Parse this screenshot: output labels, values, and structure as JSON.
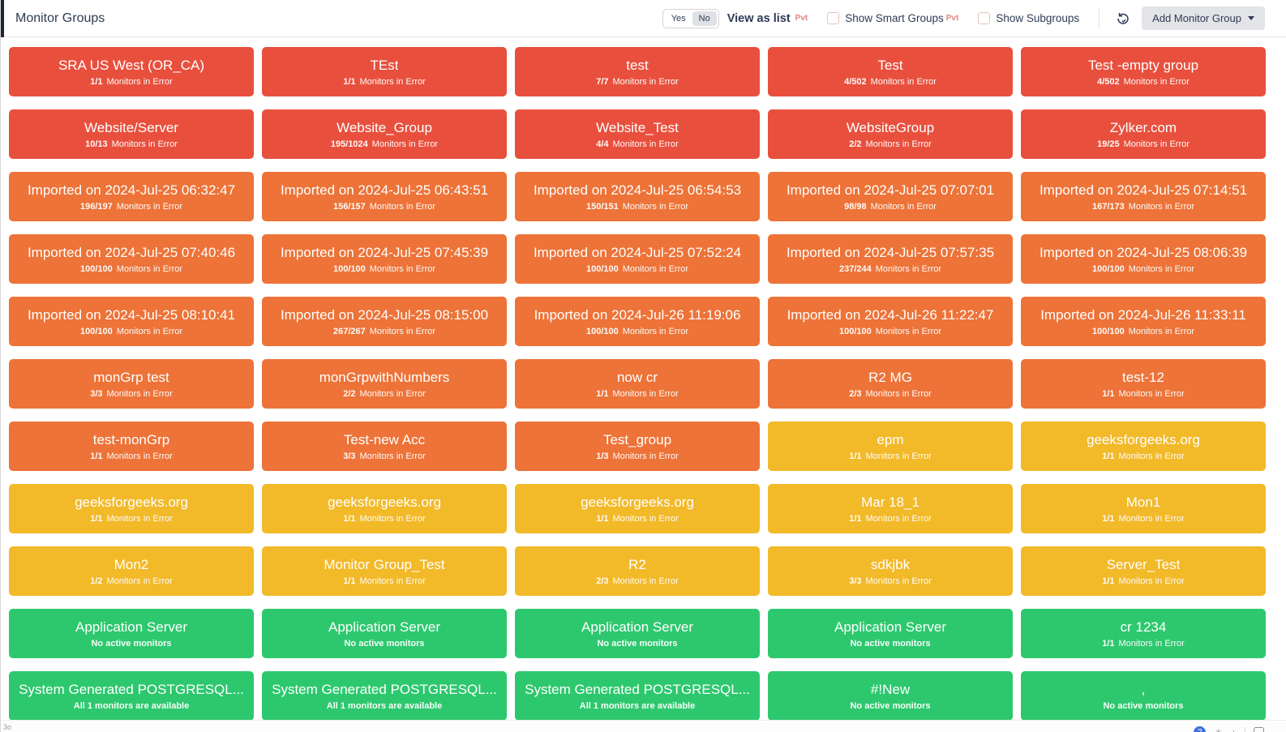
{
  "header": {
    "title": "Monitor Groups",
    "toggle": {
      "yes_label": "Yes",
      "no_label": "No",
      "selected": "No"
    },
    "view_as_list_label": "View as list",
    "view_as_list_pvt": "Pvt",
    "show_smart_groups_label": "Show Smart Groups",
    "show_smart_groups_pvt": "Pvt",
    "show_subgroups_label": "Show Subgroups",
    "refresh_icon": "refresh-icon",
    "add_button_label": "Add Monitor Group"
  },
  "colors": {
    "red": "#e8503d",
    "orange": "#ed7338",
    "yellow": "#f2b929",
    "green": "#2dc86e"
  },
  "status_texts": {
    "in_error": "Monitors in Error",
    "no_active": "No active monitors",
    "all_available": "All 1 monitors are available"
  },
  "tiles": [
    {
      "title": "SRA US West (OR_CA)",
      "count": "1/1",
      "status": "Monitors in Error",
      "color": "red"
    },
    {
      "title": "TEst",
      "count": "1/1",
      "status": "Monitors in Error",
      "color": "red"
    },
    {
      "title": "test",
      "count": "7/7",
      "status": "Monitors in Error",
      "color": "red"
    },
    {
      "title": "Test",
      "count": "4/502",
      "status": "Monitors in Error",
      "color": "red"
    },
    {
      "title": "Test -empty group",
      "count": "4/502",
      "status": "Monitors in Error",
      "color": "red"
    },
    {
      "title": "Website/Server",
      "count": "10/13",
      "status": "Monitors in Error",
      "color": "red"
    },
    {
      "title": "Website_Group",
      "count": "195/1024",
      "status": "Monitors in Error",
      "color": "red"
    },
    {
      "title": "Website_Test",
      "count": "4/4",
      "status": "Monitors in Error",
      "color": "red"
    },
    {
      "title": "WebsiteGroup",
      "count": "2/2",
      "status": "Monitors in Error",
      "color": "red"
    },
    {
      "title": "Zylker.com",
      "count": "19/25",
      "status": "Monitors in Error",
      "color": "red"
    },
    {
      "title": "Imported on 2024-Jul-25 06:32:47",
      "count": "196/197",
      "status": "Monitors in Error",
      "color": "orange"
    },
    {
      "title": "Imported on 2024-Jul-25 06:43:51",
      "count": "156/157",
      "status": "Monitors in Error",
      "color": "orange"
    },
    {
      "title": "Imported on 2024-Jul-25 06:54:53",
      "count": "150/151",
      "status": "Monitors in Error",
      "color": "orange"
    },
    {
      "title": "Imported on 2024-Jul-25 07:07:01",
      "count": "98/98",
      "status": "Monitors in Error",
      "color": "orange"
    },
    {
      "title": "Imported on 2024-Jul-25 07:14:51",
      "count": "167/173",
      "status": "Monitors in Error",
      "color": "orange"
    },
    {
      "title": "Imported on 2024-Jul-25 07:40:46",
      "count": "100/100",
      "status": "Monitors in Error",
      "color": "orange"
    },
    {
      "title": "Imported on 2024-Jul-25 07:45:39",
      "count": "100/100",
      "status": "Monitors in Error",
      "color": "orange"
    },
    {
      "title": "Imported on 2024-Jul-25 07:52:24",
      "count": "100/100",
      "status": "Monitors in Error",
      "color": "orange"
    },
    {
      "title": "Imported on 2024-Jul-25 07:57:35",
      "count": "237/244",
      "status": "Monitors in Error",
      "color": "orange"
    },
    {
      "title": "Imported on 2024-Jul-25 08:06:39",
      "count": "100/100",
      "status": "Monitors in Error",
      "color": "orange"
    },
    {
      "title": "Imported on 2024-Jul-25 08:10:41",
      "count": "100/100",
      "status": "Monitors in Error",
      "color": "orange"
    },
    {
      "title": "Imported on 2024-Jul-25 08:15:00",
      "count": "267/267",
      "status": "Monitors in Error",
      "color": "orange"
    },
    {
      "title": "Imported on 2024-Jul-26 11:19:06",
      "count": "100/100",
      "status": "Monitors in Error",
      "color": "orange"
    },
    {
      "title": "Imported on 2024-Jul-26 11:22:47",
      "count": "100/100",
      "status": "Monitors in Error",
      "color": "orange"
    },
    {
      "title": "Imported on 2024-Jul-26 11:33:11",
      "count": "100/100",
      "status": "Monitors in Error",
      "color": "orange"
    },
    {
      "title": "monGrp test",
      "count": "3/3",
      "status": "Monitors in Error",
      "color": "orange"
    },
    {
      "title": "monGrpwithNumbers",
      "count": "2/2",
      "status": "Monitors in Error",
      "color": "orange"
    },
    {
      "title": "now cr",
      "count": "1/1",
      "status": "Monitors in Error",
      "color": "orange"
    },
    {
      "title": "R2 MG",
      "count": "2/3",
      "status": "Monitors in Error",
      "color": "orange"
    },
    {
      "title": "test-12",
      "count": "1/1",
      "status": "Monitors in Error",
      "color": "orange"
    },
    {
      "title": "test-monGrp",
      "count": "1/1",
      "status": "Monitors in Error",
      "color": "orange"
    },
    {
      "title": "Test-new Acc",
      "count": "3/3",
      "status": "Monitors in Error",
      "color": "orange"
    },
    {
      "title": "Test_group",
      "count": "1/3",
      "status": "Monitors in Error",
      "color": "orange"
    },
    {
      "title": "epm",
      "count": "1/1",
      "status": "Monitors in Error",
      "color": "yellow"
    },
    {
      "title": "geeksforgeeks.org",
      "count": "1/1",
      "status": "Monitors in Error",
      "color": "yellow"
    },
    {
      "title": "geeksforgeeks.org",
      "count": "1/1",
      "status": "Monitors in Error",
      "color": "yellow"
    },
    {
      "title": "geeksforgeeks.org",
      "count": "1/1",
      "status": "Monitors in Error",
      "color": "yellow"
    },
    {
      "title": "geeksforgeeks.org",
      "count": "1/1",
      "status": "Monitors in Error",
      "color": "yellow"
    },
    {
      "title": "Mar 18_1",
      "count": "1/1",
      "status": "Monitors in Error",
      "color": "yellow"
    },
    {
      "title": "Mon1",
      "count": "1/1",
      "status": "Monitors in Error",
      "color": "yellow"
    },
    {
      "title": "Mon2",
      "count": "1/2",
      "status": "Monitors in Error",
      "color": "yellow"
    },
    {
      "title": "Monitor Group_Test",
      "count": "1/1",
      "status": "Monitors in Error",
      "color": "yellow"
    },
    {
      "title": "R2",
      "count": "2/3",
      "status": "Monitors in Error",
      "color": "yellow"
    },
    {
      "title": "sdkjbk",
      "count": "3/3",
      "status": "Monitors in Error",
      "color": "yellow"
    },
    {
      "title": "Server_Test",
      "count": "1/1",
      "status": "Monitors in Error",
      "color": "yellow"
    },
    {
      "title": "Application Server",
      "count": "",
      "status": "No active monitors",
      "color": "green"
    },
    {
      "title": "Application Server",
      "count": "",
      "status": "No active monitors",
      "color": "green"
    },
    {
      "title": "Application Server",
      "count": "",
      "status": "No active monitors",
      "color": "green"
    },
    {
      "title": "Application Server",
      "count": "",
      "status": "No active monitors",
      "color": "green"
    },
    {
      "title": "cr 1234",
      "count": "1/1",
      "status": "Monitors in Error",
      "color": "green"
    },
    {
      "title": "System Generated POSTGRESQL...",
      "count": "",
      "status": "All 1 monitors are available",
      "color": "green"
    },
    {
      "title": "System Generated POSTGRESQL...",
      "count": "",
      "status": "All 1 monitors are available",
      "color": "green"
    },
    {
      "title": "System Generated POSTGRESQL...",
      "count": "",
      "status": "All 1 monitors are available",
      "color": "green"
    },
    {
      "title": "#!New",
      "count": "",
      "status": "No active monitors",
      "color": "green"
    },
    {
      "title": ",",
      "count": "",
      "status": "No active monitors",
      "color": "green"
    }
  ],
  "bottom_bar": {
    "fragment": "3o"
  }
}
